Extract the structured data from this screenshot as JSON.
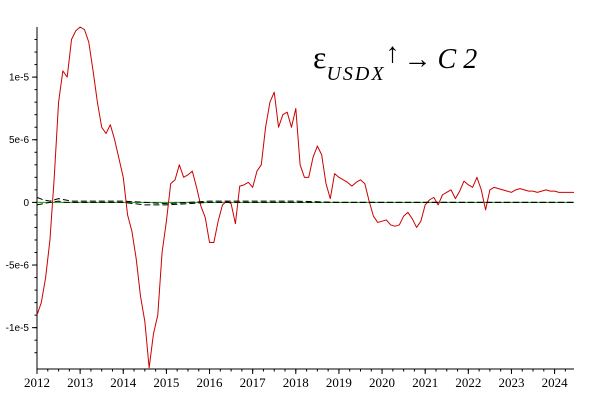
{
  "chart_data": {
    "type": "line",
    "title": {
      "main": "ε",
      "subscript": "USDX",
      "arrow_up": "↑",
      "arrow_right": "→",
      "target": "C 2"
    },
    "xlabel": "",
    "ylabel": "",
    "xlim": [
      2012.0,
      2024.45
    ],
    "ylim": [
      -1.33e-05,
      1.4e-05
    ],
    "x_ticks": [
      2012,
      2013,
      2014,
      2015,
      2016,
      2017,
      2018,
      2019,
      2020,
      2021,
      2022,
      2023,
      2024
    ],
    "x_tick_labels": [
      "2012",
      "2013",
      "2014",
      "2015",
      "2016",
      "2017",
      "2018",
      "2019",
      "2020",
      "2021",
      "2022",
      "2023",
      "2024"
    ],
    "y_ticks": [
      1e-05,
      5e-06,
      0,
      -5e-06,
      -1e-05
    ],
    "y_tick_labels": [
      "1e-5",
      "5e-6",
      "0",
      "-5e-6",
      "-1e-5"
    ],
    "grid": false,
    "colors": {
      "response": "#cc0000",
      "zero_line": "#00aa00",
      "bands": "#000000",
      "axis": "#000000"
    },
    "series": [
      {
        "role": "response",
        "style": "solid",
        "x": [
          2012.0,
          2012.1,
          2012.2,
          2012.3,
          2012.4,
          2012.5,
          2012.6,
          2012.7,
          2012.8,
          2012.9,
          2013.0,
          2013.1,
          2013.2,
          2013.3,
          2013.4,
          2013.5,
          2013.6,
          2013.7,
          2013.8,
          2013.9,
          2014.0,
          2014.1,
          2014.2,
          2014.3,
          2014.4,
          2014.5,
          2014.6,
          2014.7,
          2014.8,
          2014.9,
          2015.0,
          2015.1,
          2015.2,
          2015.3,
          2015.4,
          2015.5,
          2015.6,
          2015.7,
          2015.8,
          2015.9,
          2016.0,
          2016.1,
          2016.2,
          2016.3,
          2016.4,
          2016.5,
          2016.6,
          2016.7,
          2016.8,
          2016.9,
          2017.0,
          2017.1,
          2017.2,
          2017.3,
          2017.4,
          2017.5,
          2017.6,
          2017.7,
          2017.8,
          2017.9,
          2018.0,
          2018.1,
          2018.2,
          2018.3,
          2018.4,
          2018.5,
          2018.6,
          2018.7,
          2018.8,
          2018.9,
          2019.0,
          2019.1,
          2019.2,
          2019.3,
          2019.4,
          2019.5,
          2019.6,
          2019.7,
          2019.8,
          2019.9,
          2020.0,
          2020.1,
          2020.2,
          2020.3,
          2020.4,
          2020.5,
          2020.6,
          2020.7,
          2020.8,
          2020.9,
          2021.0,
          2021.1,
          2021.2,
          2021.3,
          2021.4,
          2021.5,
          2021.6,
          2021.7,
          2021.8,
          2021.9,
          2022.0,
          2022.1,
          2022.2,
          2022.3,
          2022.4,
          2022.5,
          2022.6,
          2022.7,
          2022.8,
          2022.9,
          2023.0,
          2023.1,
          2023.2,
          2023.3,
          2023.4,
          2023.5,
          2023.6,
          2023.7,
          2023.8,
          2023.9,
          2024.0,
          2024.1,
          2024.2,
          2024.3,
          2024.45
        ],
        "y": [
          -9e-06,
          -8e-06,
          -6e-06,
          -3e-06,
          2e-06,
          8e-06,
          1.05e-05,
          1e-05,
          1.3e-05,
          1.37e-05,
          1.4e-05,
          1.38e-05,
          1.28e-05,
          1.05e-05,
          8e-06,
          6e-06,
          5.5e-06,
          6.2e-06,
          5e-06,
          3.5e-06,
          2e-06,
          -1e-06,
          -2.3e-06,
          -4.5e-06,
          -7.5e-06,
          -9.5e-06,
          -1.32e-05,
          -1.05e-05,
          -9e-06,
          -4e-06,
          -1.5e-06,
          1.5e-06,
          1.8e-06,
          3e-06,
          2e-06,
          2.2e-06,
          2.5e-06,
          1.2e-06,
          -3e-07,
          -1.2e-06,
          -3.2e-06,
          -3.2e-06,
          -1.5e-06,
          -2e-07,
          1e-07,
          -1e-07,
          -1.7e-06,
          1.3e-06,
          1.4e-06,
          1.6e-06,
          1.2e-06,
          2.5e-06,
          3e-06,
          6e-06,
          8e-06,
          8.8e-06,
          6e-06,
          7e-06,
          7.2e-06,
          6e-06,
          7.5e-06,
          3e-06,
          2e-06,
          2e-06,
          3.6e-06,
          4.5e-06,
          3.8e-06,
          1.5e-06,
          3e-07,
          2.3e-06,
          2e-06,
          1.8e-06,
          1.6e-06,
          1.3e-06,
          1.6e-06,
          1.8e-06,
          1.5e-06,
          1e-07,
          -1.1e-06,
          -1.6e-06,
          -1.5e-06,
          -1.4e-06,
          -1.8e-06,
          -1.9e-06,
          -1.8e-06,
          -1.1e-06,
          -8e-07,
          -1.3e-06,
          -2e-06,
          -1.5e-06,
          -2e-07,
          2e-07,
          4e-07,
          -2e-07,
          6e-07,
          8e-07,
          1e-06,
          3e-07,
          9e-07,
          1.7e-06,
          1.4e-06,
          1.2e-06,
          2e-06,
          1e-06,
          -6e-07,
          1e-06,
          1.2e-06,
          1.1e-06,
          1e-06,
          9e-07,
          8e-07,
          1e-06,
          1.1e-06,
          1e-06,
          9e-07,
          9e-07,
          8e-07,
          9e-07,
          1e-06,
          9e-07,
          9e-07,
          8e-07,
          8e-07,
          8e-07,
          8e-07
        ]
      },
      {
        "role": "band-upper",
        "style": "dashed",
        "x": [
          2012.0,
          2012.15,
          2012.3,
          2012.5,
          2012.65,
          2012.8,
          2013.0,
          2014.0,
          2014.5,
          2015.0,
          2016.0,
          2017.0,
          2018.0,
          2019.0,
          2020.0,
          2024.45
        ],
        "y": [
          4e-07,
          2e-07,
          1e-07,
          3e-07,
          2e-07,
          1e-07,
          1e-07,
          1e-07,
          0,
          -1e-07,
          1e-07,
          1e-07,
          1e-07,
          0,
          0,
          0
        ]
      },
      {
        "role": "band-lower",
        "style": "dashed",
        "x": [
          2012.0,
          2012.15,
          2012.3,
          2012.5,
          2012.65,
          2012.8,
          2013.0,
          2014.0,
          2014.5,
          2015.0,
          2016.0,
          2017.0,
          2018.0,
          2019.0,
          2020.0,
          2024.45
        ],
        "y": [
          -2e-07,
          -1e-07,
          0,
          1e-07,
          0,
          0,
          0,
          0,
          -2e-07,
          -2e-07,
          0,
          0,
          0,
          0,
          0,
          0
        ]
      }
    ]
  }
}
